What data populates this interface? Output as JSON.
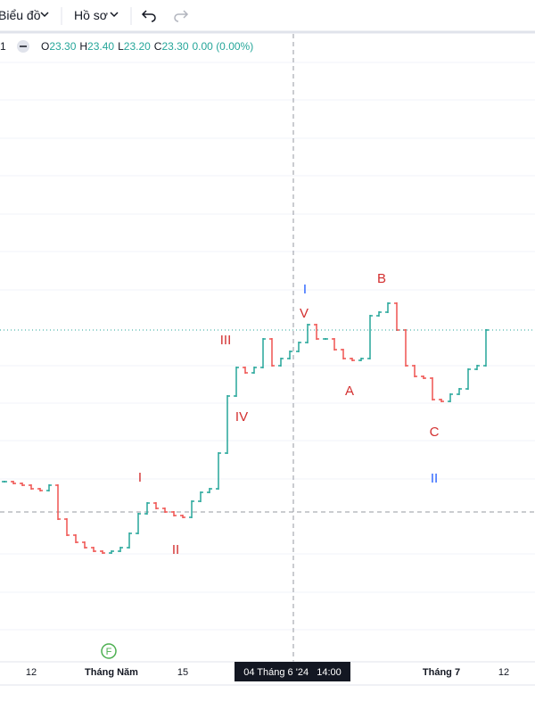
{
  "toolbar": {
    "chart_menu": "Biểu đồ",
    "profile_menu": "Hồ sơ"
  },
  "legend": {
    "interval": "1",
    "open_label": "O",
    "open": "23.30",
    "high_label": "H",
    "high": "23.40",
    "low_label": "L",
    "low": "23.20",
    "close_label": "C",
    "close": "23.30",
    "change": "0.00 (0.00%)"
  },
  "waves": {
    "red_1": "I",
    "red_2": "II",
    "red_3": "III",
    "red_4": "IV",
    "red_5": "V",
    "blue_1": "I",
    "a": "A",
    "b": "B",
    "c": "C",
    "blue_2": "II"
  },
  "crosshair_label": "04 Tháng 6 '24   14:00",
  "marker": "F",
  "chart_data": {
    "type": "ohlc",
    "values": [
      22.45,
      22.44,
      22.43,
      22.41,
      22.4,
      22.43,
      22.24,
      22.15,
      22.11,
      22.08,
      22.06,
      22.05,
      22.06,
      22.08,
      22.16,
      22.27,
      22.33,
      22.3,
      22.28,
      22.26,
      22.25,
      22.34,
      22.39,
      22.41,
      22.61,
      22.93,
      23.09,
      23.06,
      23.09,
      23.25,
      23.1,
      23.14,
      23.18,
      23.23,
      23.33,
      23.25,
      23.25,
      23.19,
      23.14,
      23.13,
      23.14,
      23.38,
      23.4,
      23.45,
      23.3,
      23.1,
      23.04,
      23.03,
      22.91,
      22.9,
      22.94,
      22.97,
      23.08,
      23.1,
      23.3
    ],
    "ylim": [
      21.45,
      24.95
    ],
    "up_color": "#26a69a",
    "down_color": "#ef5350",
    "xticks": [
      {
        "value": 3,
        "label": "12"
      },
      {
        "value": 12,
        "label": "Tháng Năm"
      },
      {
        "value": 20,
        "label": "15"
      },
      {
        "value": 49,
        "label": "Tháng 7"
      },
      {
        "value": 56,
        "label": "12"
      }
    ]
  }
}
